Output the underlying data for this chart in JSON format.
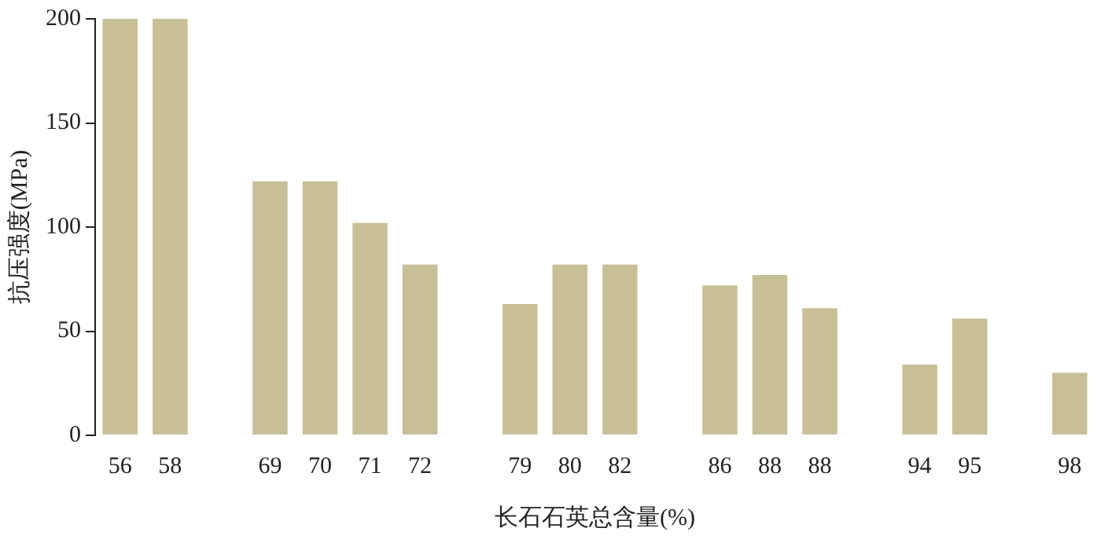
{
  "chart_data": {
    "type": "bar",
    "xlabel": "长石石英总含量(%)",
    "ylabel": "抗压强度(MPa)",
    "categories": [
      "56",
      "58",
      null,
      "69",
      "70",
      "71",
      "72",
      null,
      "79",
      "80",
      "82",
      null,
      "86",
      "88",
      "88",
      null,
      "94",
      "95",
      null,
      "98"
    ],
    "values": [
      200,
      200,
      null,
      122,
      122,
      102,
      82,
      null,
      63,
      82,
      82,
      null,
      72,
      77,
      61,
      null,
      34,
      56,
      null,
      30
    ],
    "color": "#c8bf96",
    "ylim": [
      0,
      200
    ],
    "yticks": [
      0,
      50,
      100,
      150,
      200
    ]
  }
}
